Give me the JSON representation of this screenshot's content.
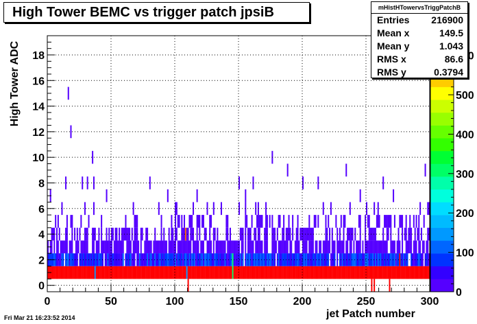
{
  "footer_text": "Fri Mar 21 16:23:52 2014",
  "stats": {
    "name": "mHistHTowervsTriggPatchB",
    "rows": [
      {
        "label": "Entries",
        "value": "216900"
      },
      {
        "label": "Mean x",
        "value": "149.5"
      },
      {
        "label": "Mean y",
        "value": "1.043"
      },
      {
        "label": "RMS x",
        "value": "86.6"
      },
      {
        "label": "RMS y",
        "value": "0.3794"
      }
    ]
  },
  "colors": {
    "palette": [
      "#5500ff",
      "#3300ff",
      "#0033ff",
      "#0066ff",
      "#0099ff",
      "#00bbff",
      "#00ddff",
      "#00ffdd",
      "#00ffaa",
      "#00ff66",
      "#00ff33",
      "#33ff00",
      "#66ff00",
      "#99ff00",
      "#ccff00",
      "#ffff00",
      "#ffcc00",
      "#ff9900",
      "#ff6600",
      "#ff0000"
    ]
  },
  "chart_data": {
    "type": "heatmap",
    "title": "High Tower BEMC vs trigger patch jpsiB",
    "xlabel": "jet  Patch number",
    "ylabel": "High Tower ADC",
    "xlim": [
      0,
      300
    ],
    "ylim": [
      -0.5,
      19.5
    ],
    "zlim": [
      0,
      650
    ],
    "xticks": [
      0,
      50,
      100,
      150,
      200,
      250,
      300
    ],
    "yticks": [
      0,
      2,
      4,
      6,
      8,
      10,
      12,
      14,
      16,
      18
    ],
    "zticks": [
      0,
      100,
      200,
      300,
      400,
      500,
      600
    ],
    "grid": true,
    "y_bins": [
      0,
      1,
      2,
      3,
      4,
      5,
      6,
      7,
      8,
      9,
      10,
      11,
      12,
      13,
      14,
      15,
      16,
      17,
      18,
      19
    ],
    "row_counts_per_patch": {
      "y1": 650,
      "y2": 90,
      "y3": 25,
      "y4": 6,
      "y5": 3,
      "y6": 1
    },
    "special_cells": [
      {
        "x": 110,
        "y": 0,
        "z": 620
      },
      {
        "x": 254,
        "y": 0,
        "z": 620
      },
      {
        "x": 256,
        "y": 0,
        "z": 620
      },
      {
        "x": 268,
        "y": 0,
        "z": 620
      },
      {
        "x": 37,
        "y": 1,
        "z": 150
      },
      {
        "x": 109,
        "y": 1,
        "z": 150
      },
      {
        "x": 145,
        "y": 2,
        "z": 320
      },
      {
        "x": 145,
        "y": 1,
        "z": 320
      },
      {
        "x": 276,
        "y": 2,
        "z": 640
      },
      {
        "x": 108,
        "y": 4,
        "z": 600
      },
      {
        "x": 165,
        "y": 3,
        "z": 30
      }
    ],
    "outliers": [
      {
        "x": 16,
        "y": 15,
        "z": 1
      },
      {
        "x": 18,
        "y": 12,
        "z": 1
      },
      {
        "x": 35,
        "y": 10,
        "z": 1
      },
      {
        "x": 176,
        "y": 10,
        "z": 1
      },
      {
        "x": 188,
        "y": 9,
        "z": 1
      },
      {
        "x": 234,
        "y": 9,
        "z": 1
      },
      {
        "x": 296,
        "y": 9,
        "z": 1
      },
      {
        "x": 14,
        "y": 8,
        "z": 1
      },
      {
        "x": 27,
        "y": 8,
        "z": 1
      },
      {
        "x": 31,
        "y": 8,
        "z": 1
      },
      {
        "x": 36,
        "y": 8,
        "z": 1
      },
      {
        "x": 80,
        "y": 8,
        "z": 1
      },
      {
        "x": 150,
        "y": 8,
        "z": 1
      },
      {
        "x": 161,
        "y": 8,
        "z": 1
      },
      {
        "x": 200,
        "y": 8,
        "z": 1
      },
      {
        "x": 212,
        "y": 8,
        "z": 1
      },
      {
        "x": 263,
        "y": 8,
        "z": 1
      },
      {
        "x": 2,
        "y": 7,
        "z": 1
      },
      {
        "x": 46,
        "y": 7,
        "z": 1
      },
      {
        "x": 94,
        "y": 7,
        "z": 1
      },
      {
        "x": 117,
        "y": 7,
        "z": 1
      },
      {
        "x": 155,
        "y": 7,
        "z": 1
      },
      {
        "x": 245,
        "y": 7,
        "z": 1
      },
      {
        "x": 271,
        "y": 7,
        "z": 1
      }
    ]
  }
}
